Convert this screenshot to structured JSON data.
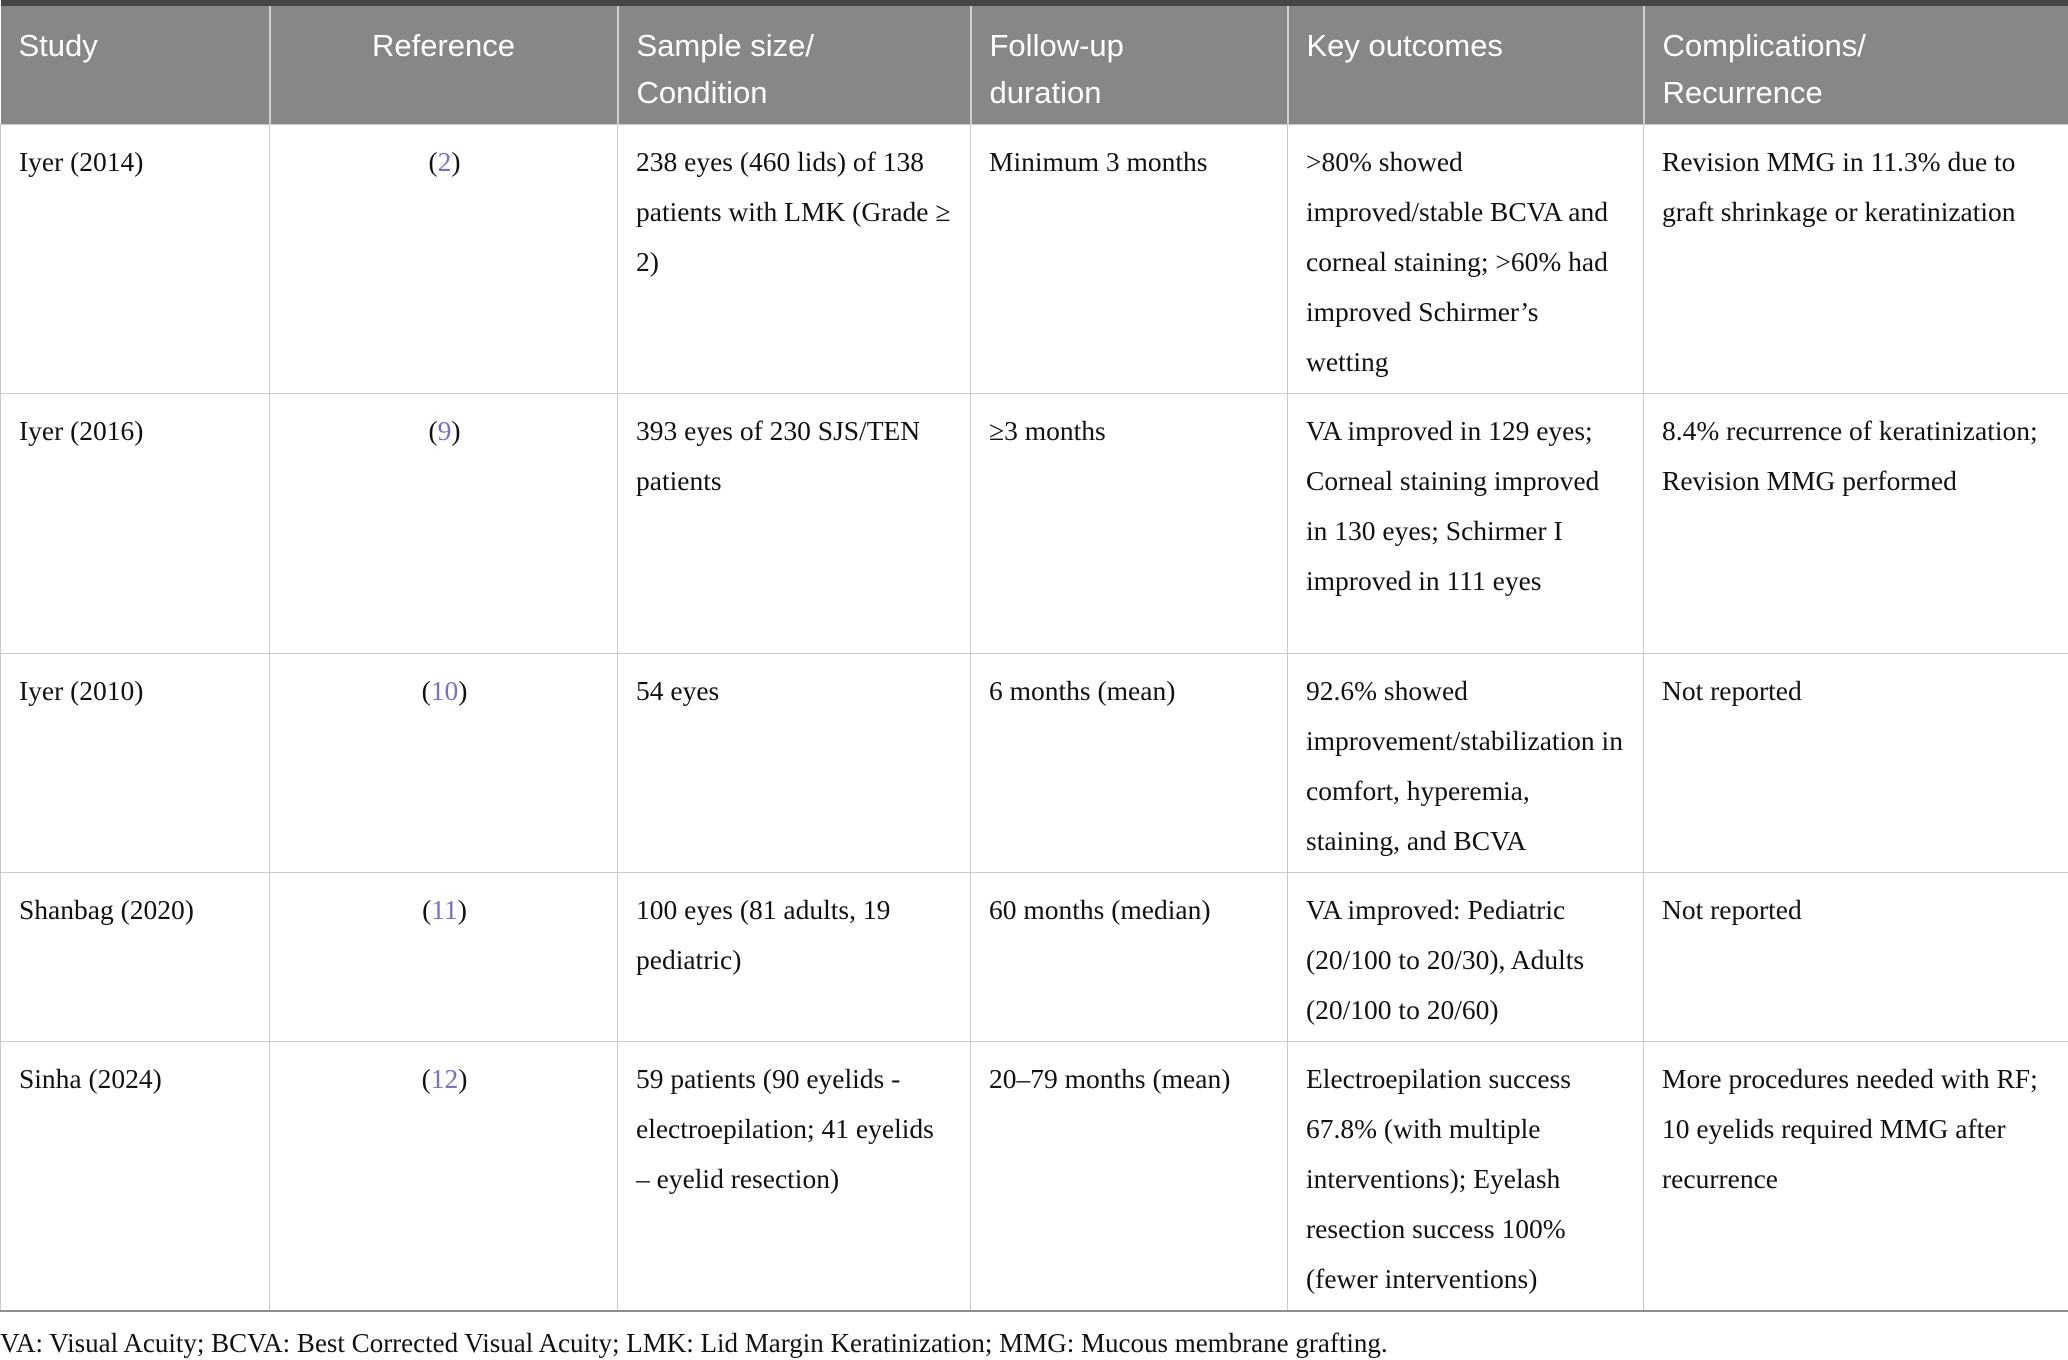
{
  "colors": {
    "header-bg": "#878787",
    "header-text": "#ffffff",
    "link": "#7b70c2",
    "border-top": "#454545",
    "border-bottom": "#8f8f8f",
    "body-text": "#111111"
  },
  "punctuation": {
    "ref_open": "(",
    "ref_close": ")"
  },
  "table": {
    "columns": [
      "Study",
      "Reference",
      "Sample size/\nCondition",
      "Follow-up\nduration",
      "Key outcomes",
      "Complications/\nRecurrence"
    ],
    "rows": [
      {
        "study": "Iyer (2014)",
        "reference": "2",
        "sample": "238 eyes (460 lids) of 138 patients with LMK (Grade ≥ 2)",
        "followup": "Minimum 3 months",
        "outcomes": ">80% showed improved/stable BCVA and corneal staining; >60% had improved Schirmer’s wetting",
        "complications": "Revision MMG in 11.3% due to graft shrinkage or keratinization"
      },
      {
        "study": "Iyer (2016)",
        "reference": "9",
        "sample": "393 eyes of 230 SJS/TEN patients",
        "followup": "≥3 months",
        "outcomes": "VA improved in 129 eyes; Corneal staining improved in 130 eyes; Schirmer I improved in 111 eyes",
        "complications": "8.4% recurrence of keratinization; Revision MMG performed"
      },
      {
        "study": "Iyer (2010)",
        "reference": "10",
        "sample": "54 eyes",
        "followup": "6 months (mean)",
        "outcomes": "92.6% showed improvement/stabilization in comfort, hyperemia, staining, and BCVA",
        "complications": "Not reported"
      },
      {
        "study": "Shanbag (2020)",
        "reference": "11",
        "sample": "100 eyes (81 adults, 19 pediatric)",
        "followup": "60 months (median)",
        "outcomes": "VA improved: Pediatric (20/100 to 20/30), Adults (20/100 to 20/60)",
        "complications": "Not reported"
      },
      {
        "study": "Sinha (2024)",
        "reference": "12",
        "sample": "59 patients (90 eyelids - electroepilation; 41 eyelids – eyelid resection)",
        "followup": "20–79 months (mean)",
        "outcomes": "Electroepilation success 67.8% (with multiple interventions); Eyelash resection success 100% (fewer interventions)",
        "complications": "More procedures needed with RF; 10 eyelids required MMG after recurrence"
      }
    ]
  },
  "footnote": "VA: Visual Acuity; BCVA: Best Corrected Visual Acuity; LMK: Lid Margin Keratinization; MMG: Mucous membrane grafting."
}
